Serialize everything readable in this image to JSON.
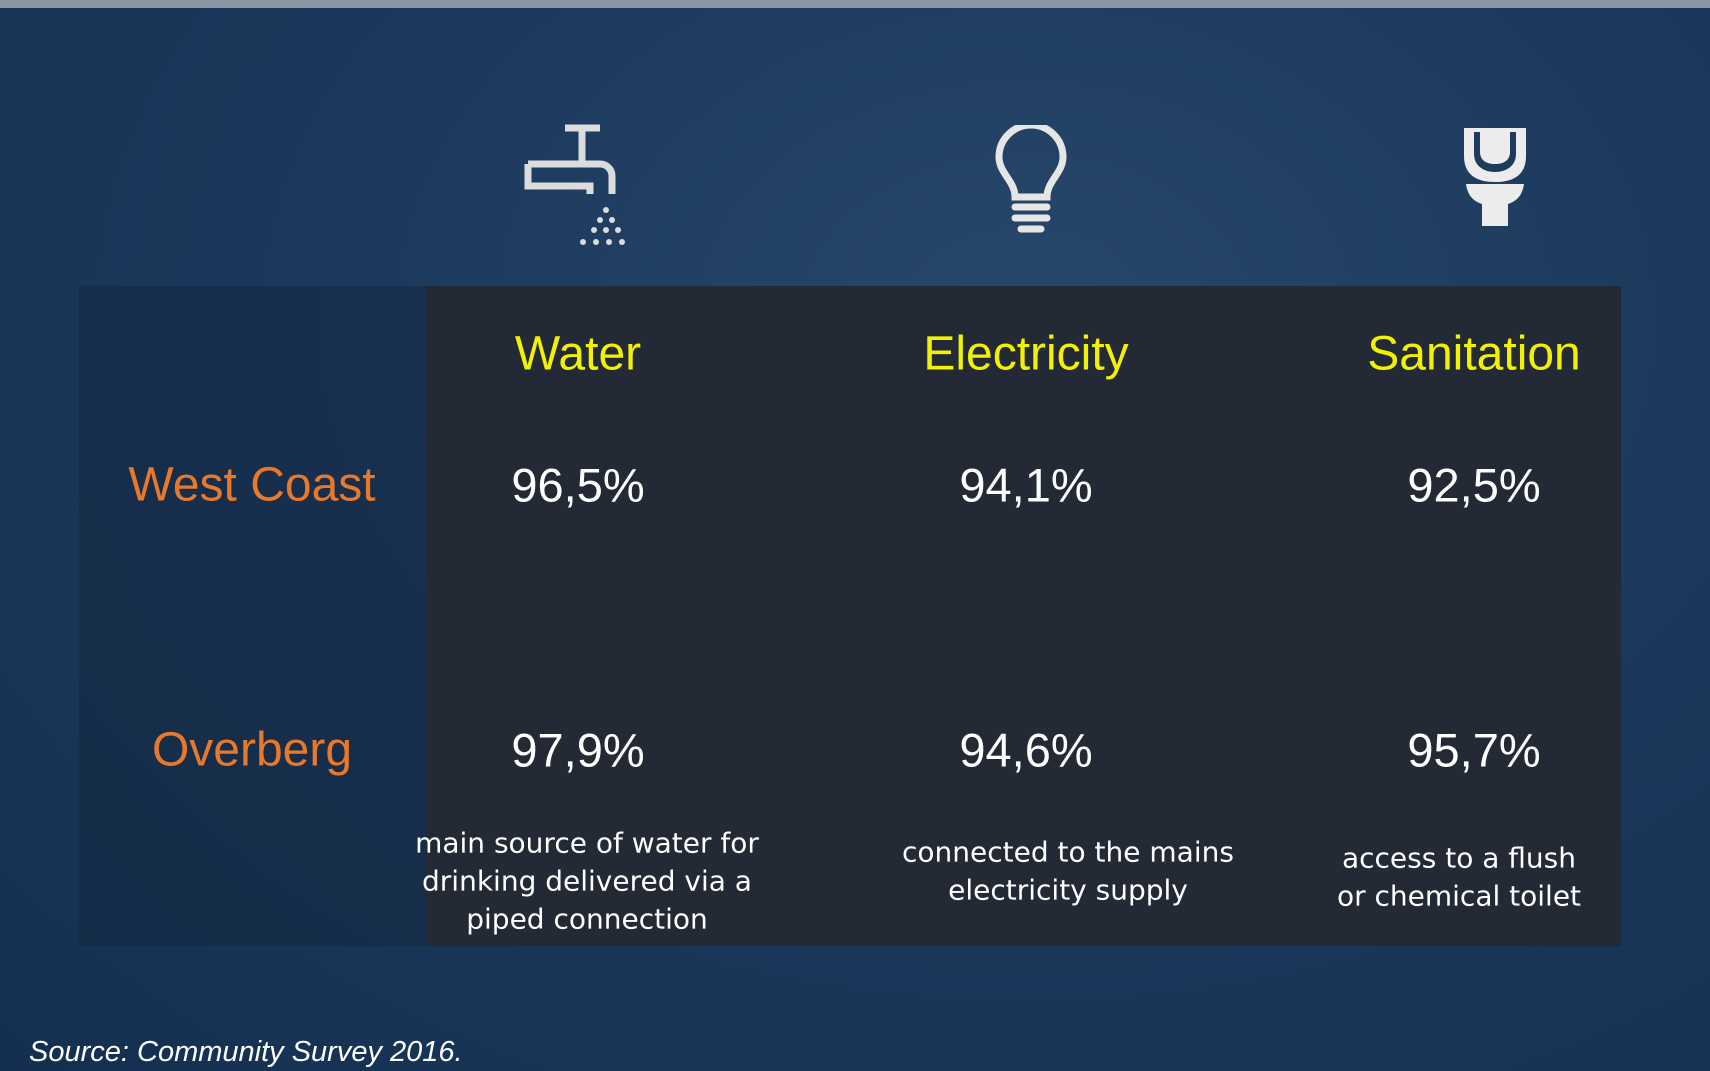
{
  "table": {
    "columns": [
      "Water",
      "Electricity",
      "Sanitation"
    ],
    "rows": [
      {
        "label": "West Coast",
        "values": [
          "96,5%",
          "94,1%",
          "92,5%"
        ]
      },
      {
        "label": "Overberg",
        "values": [
          "97,9%",
          "94,6%",
          "95,7%"
        ]
      }
    ],
    "notes": [
      [
        "main source of water for",
        "drinking  delivered via a",
        "piped connection"
      ],
      [
        "connected to the mains",
        "electricity supply"
      ],
      [
        "access to a flush",
        "or chemical toilet"
      ]
    ]
  },
  "source": "Source: Community Survey 2016."
}
